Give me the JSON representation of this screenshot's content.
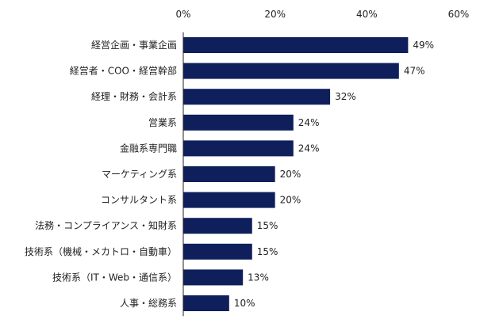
{
  "chart_data": {
    "type": "bar",
    "orientation": "horizontal",
    "title": "",
    "xlabel": "",
    "ylabel": "",
    "xlim": [
      0,
      60
    ],
    "x_ticks": [
      0,
      20,
      40,
      60
    ],
    "x_tick_labels": [
      "0%",
      "20%",
      "40%",
      "60%"
    ],
    "tick_position": "top",
    "grid": false,
    "bar_color": "#0F1F5C",
    "categories": [
      "経営企画・事業企画",
      "経営者・COO・経営幹部",
      "経理・財務・会計系",
      "営業系",
      "金融系専門職",
      "マーケティング系",
      "コンサルタント系",
      "法務・コンプライアンス・知財系",
      "技術系（機械・メカトロ・自動車）",
      "技術系（IT・Web・通信系）",
      "人事・総務系"
    ],
    "values": [
      49,
      47,
      32,
      24,
      24,
      20,
      20,
      15,
      15,
      13,
      10
    ],
    "value_labels": [
      "49%",
      "47%",
      "32%",
      "24%",
      "24%",
      "20%",
      "20%",
      "15%",
      "15%",
      "13%",
      "10%"
    ]
  }
}
